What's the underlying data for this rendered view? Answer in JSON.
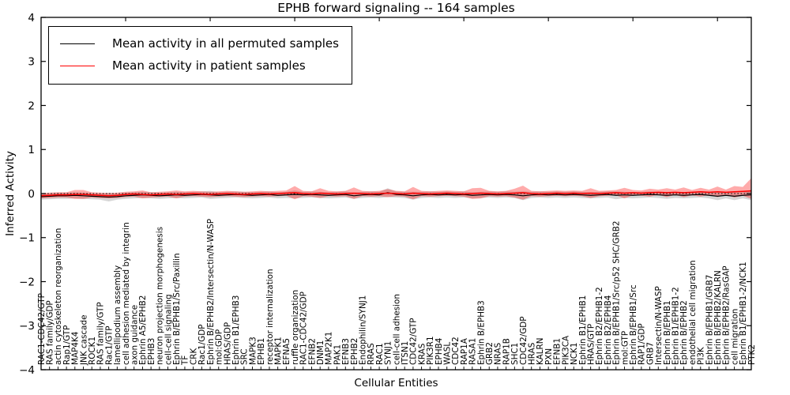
{
  "chart_data": {
    "type": "line",
    "title": "EPHB forward signaling -- 164 samples",
    "xlabel": "Cellular Entities",
    "ylabel": "Inferred Activity",
    "ylim": [
      -4,
      4
    ],
    "yticks": [
      4,
      3,
      2,
      1,
      0,
      -1,
      -2,
      -3,
      -4
    ],
    "grid": false,
    "legend_position": "upper left",
    "zero_line": {
      "style": "dotted",
      "color": "#000000",
      "y": 0
    },
    "categories": [
      "RAC1-CDC42/GTP",
      "RAS family/GDP",
      "actin cytoskeleton reorganization",
      "Rap1/GTP",
      "MAP4K4",
      "JNK cascade",
      "ROCK1",
      "RAS family/GTP",
      "Rac1/GTP",
      "lamellipodium assembly",
      "cell adhesion mediated by integrin",
      "axon guidance",
      "Ephrin A5/EPHB2",
      "EPHB3",
      "neuron projection morphogenesis",
      "cell-cell signaling",
      "Ephrin B/EPHB1/Src/Paxillin",
      "TF",
      "CRK",
      "Rac1/GDP",
      "Ephrin B/EPHB2/Intersectin/N-WASP",
      "mol:GDP",
      "HRAS/GDP",
      "Ephrin B1/EPHB3",
      "SRC",
      "MAPK3",
      "EPHB1",
      "receptor internalization",
      "MAPK1",
      "EFNA5",
      "ruffle organization",
      "RAC1-CDC42/GDP",
      "EFNB2",
      "DNM1",
      "MAP2K1",
      "PAK1",
      "EFNB3",
      "EPHB2",
      "Endophilin/SYNJ1",
      "RRAS",
      "RAC1",
      "SYNJ1",
      "cell-cell adhesion",
      "ITSN1",
      "CDC42/GTP",
      "KRAS",
      "PIK3R1",
      "EPHB4",
      "WASL",
      "CDC42",
      "RAP1A",
      "RASA1",
      "Ephrin B/EPHB3",
      "GRB2",
      "NRAS",
      "RAP1B",
      "SHC1",
      "CDC42/GDP",
      "HRAS",
      "KALRN",
      "PXN",
      "EFNB1",
      "PIK3CA",
      "NCK1",
      "Ephrin B1/EPHB1",
      "HRAS/GTP",
      "Ephrin B2/EPHB1-2",
      "Ephrin B2/EPHB4",
      "Ephrin B/EPHB1/Src/p52 SHC/GRB2",
      "mol:GTP",
      "Ephrin B/EPHB1/Src",
      "RAP1/GDP",
      "GRB7",
      "Intersectin/N-WASP",
      "Ephrin B/EPHB1",
      "Ephrin B1/EPHB1-2",
      "Ephrin B/EPHB2",
      "endothelial cell migration",
      "PI3K",
      "Ephrin B/EPHB1/GRB7",
      "Ephrin B/EPHB2/KALRN",
      "Ephrin B/EPHB2/RasGAP",
      "cell migration",
      "Ephrin B1/EPHB1-2/NCK1",
      "PTK2"
    ],
    "series": [
      {
        "name": "Mean activity in all permuted samples",
        "color": "#000000",
        "band_color": "rgba(0,0,0,0.16)",
        "values": [
          -0.07,
          -0.06,
          -0.05,
          -0.05,
          -0.04,
          -0.05,
          -0.06,
          -0.07,
          -0.08,
          -0.07,
          -0.05,
          -0.04,
          -0.03,
          -0.04,
          -0.05,
          -0.04,
          -0.03,
          -0.04,
          -0.03,
          -0.02,
          -0.03,
          -0.04,
          -0.03,
          -0.02,
          -0.03,
          -0.04,
          -0.03,
          -0.02,
          -0.04,
          -0.03,
          -0.02,
          -0.03,
          -0.02,
          -0.03,
          -0.04,
          -0.03,
          -0.02,
          -0.05,
          -0.03,
          -0.02,
          -0.03,
          0.02,
          -0.02,
          -0.03,
          -0.05,
          -0.03,
          -0.02,
          -0.03,
          -0.02,
          -0.03,
          -0.02,
          -0.04,
          -0.03,
          -0.02,
          -0.03,
          -0.02,
          -0.03,
          -0.05,
          -0.03,
          -0.02,
          -0.03,
          -0.02,
          -0.03,
          -0.02,
          -0.03,
          -0.04,
          -0.03,
          -0.02,
          -0.04,
          -0.03,
          -0.04,
          -0.03,
          -0.02,
          -0.03,
          -0.04,
          -0.03,
          -0.04,
          -0.03,
          -0.02,
          -0.04,
          -0.06,
          -0.04,
          -0.06,
          -0.04,
          -0.03
        ],
        "band_upper": [
          0.0,
          0.01,
          0.02,
          0.02,
          0.03,
          0.02,
          0.01,
          0.0,
          0.02,
          0.0,
          0.02,
          0.03,
          0.04,
          0.03,
          0.02,
          0.03,
          0.04,
          0.03,
          0.04,
          0.05,
          0.06,
          0.03,
          0.04,
          0.05,
          0.04,
          0.03,
          0.04,
          0.05,
          0.03,
          0.04,
          0.07,
          0.04,
          0.05,
          0.04,
          0.03,
          0.04,
          0.05,
          0.02,
          0.04,
          0.05,
          0.04,
          0.12,
          0.05,
          0.04,
          0.04,
          0.04,
          0.05,
          0.04,
          0.05,
          0.04,
          0.05,
          0.03,
          0.04,
          0.05,
          0.04,
          0.05,
          0.04,
          0.05,
          0.04,
          0.05,
          0.04,
          0.05,
          0.04,
          0.05,
          0.04,
          0.03,
          0.04,
          0.05,
          0.05,
          0.04,
          0.03,
          0.04,
          0.05,
          0.04,
          0.04,
          0.04,
          0.03,
          0.04,
          0.05,
          0.03,
          0.03,
          0.03,
          0.03,
          0.03,
          0.09
        ],
        "band_lower": [
          -0.14,
          -0.13,
          -0.12,
          -0.12,
          -0.11,
          -0.12,
          -0.13,
          -0.14,
          -0.18,
          -0.14,
          -0.12,
          -0.11,
          -0.1,
          -0.11,
          -0.12,
          -0.11,
          -0.1,
          -0.11,
          -0.1,
          -0.09,
          -0.12,
          -0.11,
          -0.1,
          -0.09,
          -0.1,
          -0.11,
          -0.1,
          -0.09,
          -0.11,
          -0.1,
          -0.11,
          -0.1,
          -0.09,
          -0.1,
          -0.11,
          -0.1,
          -0.09,
          -0.12,
          -0.1,
          -0.09,
          -0.1,
          -0.08,
          -0.09,
          -0.1,
          -0.14,
          -0.1,
          -0.09,
          -0.1,
          -0.09,
          -0.1,
          -0.09,
          -0.11,
          -0.1,
          -0.09,
          -0.1,
          -0.09,
          -0.1,
          -0.15,
          -0.1,
          -0.09,
          -0.1,
          -0.09,
          -0.1,
          -0.09,
          -0.1,
          -0.11,
          -0.1,
          -0.09,
          -0.13,
          -0.1,
          -0.11,
          -0.1,
          -0.09,
          -0.1,
          -0.12,
          -0.1,
          -0.11,
          -0.1,
          -0.09,
          -0.11,
          -0.15,
          -0.11,
          -0.15,
          -0.11,
          -0.15
        ]
      },
      {
        "name": "Mean activity in patient samples",
        "color": "#ff0000",
        "band_color": "rgba(255,0,0,0.33)",
        "values": [
          -0.05,
          -0.04,
          -0.03,
          -0.03,
          -0.02,
          -0.02,
          -0.03,
          -0.04,
          -0.05,
          -0.04,
          -0.02,
          -0.01,
          -0.02,
          -0.03,
          -0.02,
          -0.01,
          -0.02,
          -0.01,
          0.0,
          -0.01,
          -0.02,
          -0.01,
          0.0,
          -0.01,
          -0.02,
          -0.01,
          0.0,
          -0.01,
          0.0,
          0.01,
          0.02,
          0.0,
          -0.01,
          0.01,
          0.0,
          -0.01,
          0.0,
          0.01,
          0.0,
          -0.01,
          0.0,
          0.01,
          0.0,
          -0.01,
          0.01,
          0.0,
          -0.01,
          0.0,
          0.01,
          0.0,
          -0.01,
          0.0,
          0.01,
          0.0,
          -0.01,
          0.0,
          0.01,
          0.02,
          0.0,
          -0.01,
          0.0,
          0.01,
          0.0,
          0.01,
          0.0,
          0.01,
          0.0,
          0.01,
          0.02,
          0.01,
          0.02,
          0.01,
          0.02,
          0.03,
          0.02,
          0.03,
          0.02,
          0.03,
          0.04,
          0.03,
          0.04,
          0.03,
          0.04,
          0.05,
          0.06
        ],
        "band_upper": [
          0.01,
          0.02,
          0.03,
          0.03,
          0.08,
          0.08,
          0.03,
          0.02,
          0.01,
          0.02,
          0.04,
          0.05,
          0.07,
          0.03,
          0.04,
          0.05,
          0.07,
          0.05,
          0.06,
          0.05,
          0.04,
          0.05,
          0.06,
          0.05,
          0.04,
          0.05,
          0.06,
          0.05,
          0.06,
          0.07,
          0.17,
          0.06,
          0.05,
          0.12,
          0.06,
          0.05,
          0.06,
          0.14,
          0.06,
          0.05,
          0.06,
          0.1,
          0.06,
          0.05,
          0.15,
          0.06,
          0.05,
          0.06,
          0.07,
          0.06,
          0.05,
          0.12,
          0.13,
          0.06,
          0.05,
          0.06,
          0.11,
          0.18,
          0.06,
          0.05,
          0.06,
          0.07,
          0.06,
          0.07,
          0.06,
          0.12,
          0.06,
          0.07,
          0.08,
          0.13,
          0.08,
          0.07,
          0.11,
          0.09,
          0.12,
          0.09,
          0.14,
          0.08,
          0.13,
          0.09,
          0.16,
          0.09,
          0.17,
          0.15,
          0.35
        ],
        "band_lower": [
          -0.11,
          -0.1,
          -0.09,
          -0.09,
          -0.12,
          -0.12,
          -0.09,
          -0.1,
          -0.11,
          -0.1,
          -0.08,
          -0.07,
          -0.11,
          -0.09,
          -0.08,
          -0.07,
          -0.11,
          -0.07,
          -0.06,
          -0.07,
          -0.08,
          -0.07,
          -0.06,
          -0.07,
          -0.08,
          -0.07,
          -0.06,
          -0.07,
          -0.06,
          -0.05,
          -0.13,
          -0.06,
          -0.07,
          -0.1,
          -0.06,
          -0.07,
          -0.06,
          -0.12,
          -0.06,
          -0.07,
          -0.06,
          -0.08,
          -0.06,
          -0.07,
          -0.13,
          -0.06,
          -0.07,
          -0.06,
          -0.05,
          -0.06,
          -0.07,
          -0.12,
          -0.11,
          -0.06,
          -0.07,
          -0.06,
          -0.09,
          -0.14,
          -0.06,
          -0.07,
          -0.06,
          -0.05,
          -0.06,
          -0.05,
          -0.06,
          -0.1,
          -0.06,
          -0.05,
          -0.04,
          -0.11,
          -0.04,
          -0.05,
          -0.07,
          -0.03,
          -0.08,
          -0.03,
          -0.08,
          -0.04,
          -0.07,
          -0.03,
          -0.08,
          -0.03,
          -0.09,
          -0.05,
          -0.12
        ]
      }
    ]
  }
}
